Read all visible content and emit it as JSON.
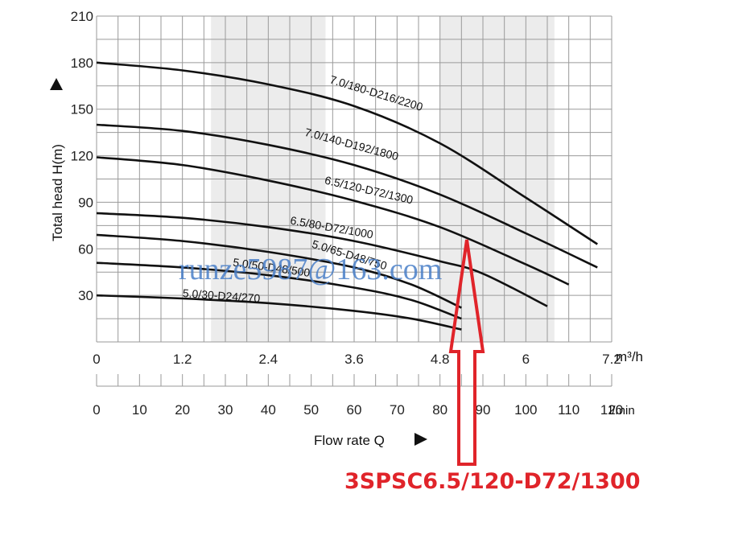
{
  "chart_data": {
    "type": "line",
    "xlabel": "Flow rate Q",
    "ylabel": "Total head H(m)",
    "x_unit_primary": "m³/h",
    "x_unit_secondary": "l/min",
    "xlim": [
      0,
      7.2
    ],
    "ylim": [
      0,
      210
    ],
    "x_ticks": [
      "0",
      "1.2",
      "2.4",
      "3.6",
      "4.8",
      "6",
      "7.2"
    ],
    "y_ticks": [
      "30",
      "60",
      "90",
      "120",
      "150",
      "180",
      "210"
    ],
    "lmin_ticks": [
      "0",
      "10",
      "20",
      "30",
      "40",
      "50",
      "60",
      "70",
      "80",
      "90",
      "100",
      "110",
      "120"
    ],
    "grid": true,
    "shaded_bands": [
      [
        1.6,
        3.2
      ],
      [
        4.8,
        6.4
      ]
    ],
    "series": [
      {
        "name": "7.0/180-D216/2200",
        "x": [
          0,
          1.2,
          2.4,
          3.6,
          4.8,
          6,
          7.0
        ],
        "y": [
          180,
          175,
          166,
          152,
          128,
          93,
          63
        ]
      },
      {
        "name": "7.0/140-D192/1800",
        "x": [
          0,
          1.2,
          2.4,
          3.6,
          4.8,
          6,
          7.0
        ],
        "y": [
          140,
          136,
          127,
          114,
          95,
          70,
          48
        ]
      },
      {
        "name": "6.5/120-D72/1300",
        "x": [
          0,
          1.2,
          2.4,
          3.6,
          4.8,
          6,
          6.6
        ],
        "y": [
          119,
          114,
          104,
          91,
          74,
          50,
          37
        ]
      },
      {
        "name": "6.5/80-D72/1000",
        "x": [
          0,
          1.2,
          2.4,
          3.6,
          4.8,
          5.4,
          6.3
        ],
        "y": [
          83,
          80,
          74,
          65,
          52,
          44,
          23
        ]
      },
      {
        "name": "5.0/65-D48/750",
        "x": [
          0,
          1.2,
          2.4,
          3.6,
          4.4,
          5.1
        ],
        "y": [
          69,
          65,
          58,
          48,
          37,
          22
        ]
      },
      {
        "name": "5.0/50-D48/500",
        "x": [
          0,
          1.2,
          2.4,
          3.6,
          4.4,
          5.1
        ],
        "y": [
          51,
          48,
          43,
          35,
          27,
          15
        ]
      },
      {
        "name": "5.0/30-D24/270",
        "x": [
          0,
          1.2,
          2.4,
          3.6,
          4.4,
          5.1
        ],
        "y": [
          30,
          28,
          25,
          20,
          15,
          8
        ]
      }
    ],
    "watermark": "runze5987@163.com",
    "highlight_model": "3SPSC6.5/120-D72/1300"
  }
}
